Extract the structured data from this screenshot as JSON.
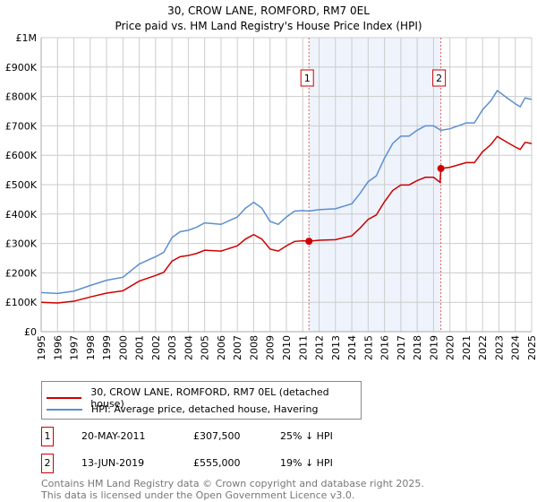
{
  "chart_data": {
    "type": "line",
    "title": "30, CROW LANE, ROMFORD, RM7 0EL",
    "subtitle": "Price paid vs. HM Land Registry's House Price Index (HPI)",
    "xlim": [
      1995,
      2025
    ],
    "ylim": [
      0,
      1000000
    ],
    "x_ticks": [
      "1995",
      "1996",
      "1997",
      "1998",
      "1999",
      "2000",
      "2001",
      "2002",
      "2003",
      "2004",
      "2005",
      "2006",
      "2007",
      "2008",
      "2009",
      "2010",
      "2011",
      "2012",
      "2013",
      "2014",
      "2015",
      "2016",
      "2017",
      "2018",
      "2019",
      "2020",
      "2021",
      "2022",
      "2023",
      "2024",
      "2025"
    ],
    "y_ticks": [
      {
        "v": 0,
        "label": "£0"
      },
      {
        "v": 100000,
        "label": "£100K"
      },
      {
        "v": 200000,
        "label": "£200K"
      },
      {
        "v": 300000,
        "label": "£300K"
      },
      {
        "v": 400000,
        "label": "£400K"
      },
      {
        "v": 500000,
        "label": "£500K"
      },
      {
        "v": 600000,
        "label": "£600K"
      },
      {
        "v": 700000,
        "label": "£700K"
      },
      {
        "v": 800000,
        "label": "£800K"
      },
      {
        "v": 900000,
        "label": "£900K"
      },
      {
        "v": 1000000,
        "label": "£1M"
      }
    ],
    "grid": true,
    "series": [
      {
        "name": "30, CROW LANE, ROMFORD, RM7 0EL (detached house)",
        "color": "#cc0000",
        "x": [
          1995,
          1996,
          1997,
          1998,
          1999,
          2000,
          2001,
          2002,
          2002.5,
          2003,
          2003.5,
          2004,
          2004.5,
          2005,
          2006,
          2007,
          2007.5,
          2008,
          2008.5,
          2009,
          2009.5,
          2010,
          2010.5,
          2011,
          2011.38,
          2012,
          2013,
          2014,
          2014.5,
          2015,
          2015.5,
          2016,
          2016.5,
          2017,
          2017.5,
          2018,
          2018.5,
          2019,
          2019.4,
          2019.45,
          2020,
          2020.5,
          2021,
          2021.5,
          2022,
          2022.5,
          2022.9,
          2023.5,
          2024,
          2024.3,
          2024.6,
          2025
        ],
        "y": [
          100000,
          97500,
          103500,
          118000,
          131000,
          139000,
          172000,
          191000,
          202000,
          240000,
          255000,
          259000,
          266000,
          277000,
          274000,
          292000,
          315000,
          330000,
          315000,
          281000,
          274000,
          292000,
          307000,
          309000,
          307500,
          311000,
          313000,
          326000,
          352000,
          382000,
          397000,
          442000,
          480000,
          499000,
          499000,
          514000,
          525000,
          525000,
          508000,
          555000,
          559000,
          567000,
          575000,
          575000,
          612000,
          636000,
          664000,
          644000,
          628000,
          620000,
          644000,
          640000
        ]
      },
      {
        "name": "HPI: Average price, detached house, Havering",
        "color": "#5b8fd0",
        "x": [
          1995,
          1996,
          1997,
          1998,
          1999,
          2000,
          2001,
          2002,
          2002.5,
          2003,
          2003.5,
          2004,
          2004.5,
          2005,
          2006,
          2007,
          2007.5,
          2008,
          2008.5,
          2009,
          2009.5,
          2010,
          2010.5,
          2011,
          2011.38,
          2012,
          2013,
          2014,
          2014.5,
          2015,
          2015.5,
          2016,
          2016.5,
          2017,
          2017.5,
          2018,
          2018.5,
          2019,
          2019.45,
          2020,
          2020.5,
          2021,
          2021.5,
          2022,
          2022.5,
          2022.9,
          2023.5,
          2024,
          2024.3,
          2024.6,
          2025
        ],
        "y": [
          133000,
          130000,
          138000,
          157000,
          175000,
          185000,
          230000,
          255000,
          270000,
          320000,
          340000,
          345000,
          355000,
          370000,
          365000,
          390000,
          420000,
          440000,
          420000,
          375000,
          365000,
          390000,
          410000,
          412000,
          410000,
          415000,
          418000,
          435000,
          470000,
          510000,
          530000,
          590000,
          640000,
          665000,
          665000,
          685000,
          700000,
          700000,
          685000,
          690000,
          700000,
          710000,
          710000,
          755000,
          785000,
          820000,
          795000,
          775000,
          765000,
          795000,
          790000
        ]
      }
    ],
    "sales": [
      {
        "id": "1",
        "x": 2011.38,
        "y": 307500,
        "date": "20-MAY-2011",
        "price": "£307,500",
        "hpi": "25% ↓ HPI"
      },
      {
        "id": "2",
        "x": 2019.45,
        "y": 555000,
        "date": "13-JUN-2019",
        "price": "£555,000",
        "hpi": "19% ↓ HPI"
      }
    ],
    "shade_color": "#eef3fc"
  },
  "footer": {
    "line1": "Contains HM Land Registry data © Crown copyright and database right 2025.",
    "line2": "This data is licensed under the Open Government Licence v3.0."
  }
}
